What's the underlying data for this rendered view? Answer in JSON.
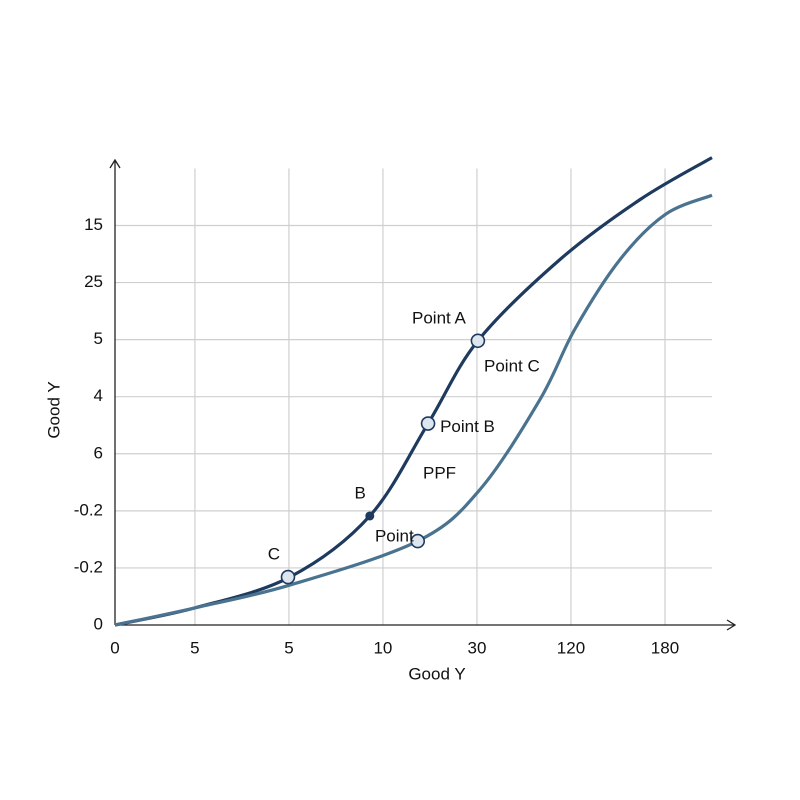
{
  "chart_data": {
    "type": "line",
    "xlabel": "Good Y",
    "ylabel": "Good Y",
    "annotations": [
      "Point C",
      "PPF"
    ],
    "xlim": [
      0,
      6.35
    ],
    "ylim": [
      0,
      8.2
    ],
    "xticks": [
      0,
      {
        "value": 0.85,
        "label": "5"
      },
      {
        "value": 1.85,
        "label": "5"
      },
      {
        "value": 2.85,
        "label": "10"
      },
      {
        "value": 3.85,
        "label": "30"
      },
      {
        "value": 4.85,
        "label": "120"
      },
      {
        "value": 5.85,
        "label": "180"
      }
    ],
    "yticks": [
      0,
      {
        "value": 1,
        "label": "-0.2"
      },
      {
        "value": 2,
        "label": "-0.2"
      },
      {
        "value": 3,
        "label": "6"
      },
      {
        "value": 4,
        "label": "4"
      },
      {
        "value": 5,
        "label": "5"
      },
      {
        "value": 6,
        "label": "25"
      },
      {
        "value": 7,
        "label": "15"
      }
    ],
    "grid": true,
    "series": [
      {
        "color": "#1f3a5f",
        "x": [
          0,
          0.85,
          1.86,
          2.71,
          3.33,
          3.86,
          4.73,
          5.59,
          6.35
        ],
        "values": [
          0,
          0.3,
          0.84,
          1.91,
          3.53,
          4.98,
          6.4,
          7.46,
          8.19
        ]
      },
      {
        "color": "#4a7390",
        "x": [
          0,
          0.85,
          1.86,
          3.22,
          3.88,
          4.52,
          4.89,
          5.37,
          5.85,
          6.35
        ],
        "values": [
          0,
          0.3,
          0.7,
          1.47,
          2.37,
          3.95,
          5.18,
          6.4,
          7.19,
          7.53
        ]
      }
    ],
    "points": [
      {
        "label": "Point A",
        "x": 3.86,
        "y": 4.98,
        "marker": "open"
      },
      {
        "label": "Point B",
        "x": 3.33,
        "y": 3.53,
        "marker": "open"
      },
      {
        "label": "B",
        "x": 2.71,
        "y": 1.91,
        "marker": "dot"
      },
      {
        "label": "C",
        "x": 1.84,
        "y": 0.84,
        "marker": "open"
      },
      {
        "label": "Point",
        "x": 3.22,
        "y": 1.47,
        "marker": "open"
      }
    ]
  }
}
